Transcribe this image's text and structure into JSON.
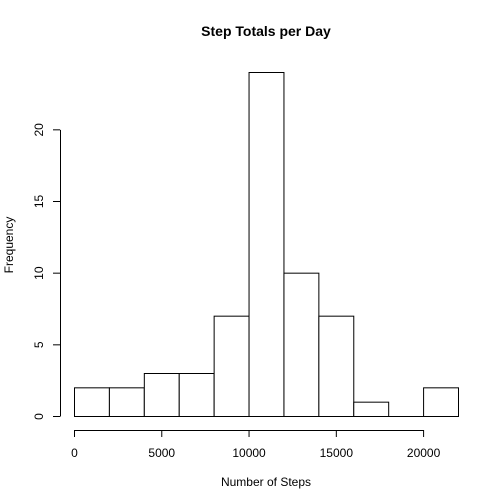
{
  "chart_data": {
    "type": "bar",
    "title": "Step Totals per Day",
    "xlabel": "Number of Steps",
    "ylabel": "Frequency",
    "bins": [
      {
        "from": 0,
        "to": 2000,
        "count": 2
      },
      {
        "from": 2000,
        "to": 4000,
        "count": 2
      },
      {
        "from": 4000,
        "to": 6000,
        "count": 3
      },
      {
        "from": 6000,
        "to": 8000,
        "count": 3
      },
      {
        "from": 8000,
        "to": 10000,
        "count": 7
      },
      {
        "from": 10000,
        "to": 12000,
        "count": 24
      },
      {
        "from": 12000,
        "to": 14000,
        "count": 10
      },
      {
        "from": 14000,
        "to": 16000,
        "count": 7
      },
      {
        "from": 16000,
        "to": 18000,
        "count": 1
      },
      {
        "from": 18000,
        "to": 20000,
        "count": 0
      },
      {
        "from": 20000,
        "to": 22000,
        "count": 2
      }
    ],
    "xlim": [
      0,
      22000
    ],
    "ylim": [
      0,
      24
    ],
    "x_ticks": [
      0,
      5000,
      10000,
      15000,
      20000
    ],
    "y_ticks": [
      0,
      5,
      10,
      15,
      20
    ],
    "grid": false,
    "colors": {
      "bar_fill": "#ffffff",
      "bar_stroke": "#000000"
    }
  }
}
